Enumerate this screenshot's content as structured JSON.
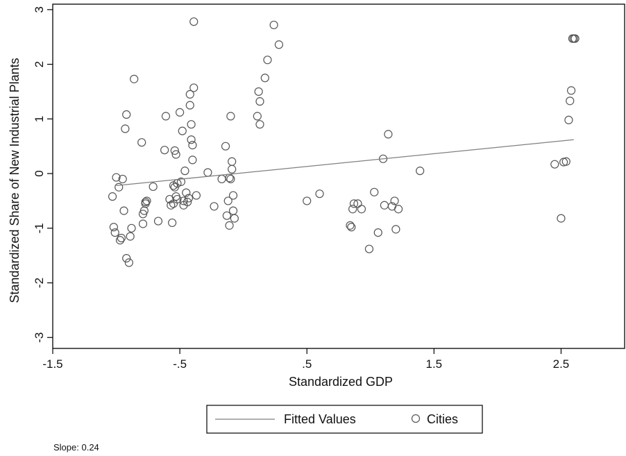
{
  "chart_data": {
    "type": "scatter",
    "xlabel": "Standardized GDP",
    "ylabel": "Standardized Share of New Industrial Plants",
    "xlim": [
      -1.5,
      3.0
    ],
    "ylim": [
      -3.2,
      3.1
    ],
    "xticks": [
      -1.5,
      -0.5,
      0.5,
      1.5,
      2.5
    ],
    "xtick_labels": [
      "-1.5",
      "-.5",
      ".5",
      "1.5",
      "2.5"
    ],
    "yticks": [
      -3,
      -2,
      -1,
      0,
      1,
      2,
      3
    ],
    "ytick_labels": [
      "-3",
      "-2",
      "-1",
      "0",
      "1",
      "2",
      "3"
    ],
    "grid": false,
    "legend_position": "bottom",
    "colors": {
      "line": "#7f7f7f",
      "marker": "#555555",
      "axis": "#000000"
    },
    "series": [
      {
        "name": "Fitted Values",
        "kind": "line",
        "x": [
          -1.0,
          2.6
        ],
        "y": [
          -0.22,
          0.62
        ]
      },
      {
        "name": "Cities",
        "kind": "scatter",
        "x": [
          -1.03,
          -1.02,
          -1.01,
          -1.0,
          -0.98,
          -0.97,
          -0.96,
          -0.95,
          -0.94,
          -0.93,
          -0.92,
          -0.92,
          -0.9,
          -0.89,
          -0.88,
          -0.86,
          -0.8,
          -0.79,
          -0.79,
          -0.78,
          -0.77,
          -0.77,
          -0.76,
          -0.71,
          -0.67,
          -0.62,
          -0.61,
          -0.58,
          -0.57,
          -0.56,
          -0.55,
          -0.55,
          -0.54,
          -0.54,
          -0.53,
          -0.53,
          -0.52,
          -0.52,
          -0.5,
          -0.49,
          -0.48,
          -0.47,
          -0.47,
          -0.46,
          -0.45,
          -0.44,
          -0.43,
          -0.42,
          -0.42,
          -0.41,
          -0.41,
          -0.4,
          -0.4,
          -0.39,
          -0.39,
          -0.37,
          -0.28,
          -0.23,
          -0.17,
          -0.14,
          -0.13,
          -0.12,
          -0.11,
          -0.11,
          -0.1,
          -0.1,
          -0.09,
          -0.09,
          -0.08,
          -0.08,
          -0.07,
          0.11,
          0.12,
          0.13,
          0.13,
          0.17,
          0.19,
          0.24,
          0.28,
          0.5,
          0.6,
          0.84,
          0.85,
          0.86,
          0.87,
          0.9,
          0.93,
          0.99,
          1.03,
          1.06,
          1.1,
          1.11,
          1.14,
          1.17,
          1.19,
          1.2,
          1.22,
          1.39,
          2.45,
          2.5,
          2.52,
          2.54,
          2.56,
          2.57,
          2.58,
          2.59,
          2.6,
          2.61
        ],
        "y": [
          -0.42,
          -0.98,
          -1.08,
          -0.07,
          -0.25,
          -1.22,
          -1.18,
          -0.1,
          -0.68,
          0.82,
          1.08,
          -1.55,
          -1.63,
          -1.15,
          -1.0,
          1.73,
          0.57,
          -0.92,
          -0.74,
          -0.68,
          -0.55,
          -0.52,
          -0.5,
          -0.24,
          -0.87,
          0.43,
          1.05,
          -0.47,
          -0.58,
          -0.9,
          -0.55,
          -0.22,
          -0.25,
          0.42,
          0.35,
          -0.42,
          -0.47,
          -0.18,
          1.12,
          -0.15,
          0.78,
          -0.58,
          -0.5,
          0.05,
          -0.35,
          -0.52,
          -0.45,
          1.45,
          1.25,
          0.9,
          0.62,
          0.52,
          0.25,
          1.57,
          2.78,
          -0.4,
          0.02,
          -0.6,
          -0.1,
          0.5,
          -0.77,
          -0.5,
          -0.95,
          -0.08,
          -0.1,
          1.05,
          0.22,
          0.08,
          -0.4,
          -0.68,
          -0.82,
          1.05,
          1.5,
          0.9,
          1.32,
          1.75,
          2.08,
          2.72,
          2.36,
          -0.5,
          -0.37,
          -0.95,
          -0.98,
          -0.65,
          -0.55,
          -0.55,
          -0.65,
          -1.38,
          -0.34,
          -1.08,
          0.27,
          -0.58,
          0.72,
          -0.6,
          -0.5,
          -1.02,
          -0.65,
          0.05,
          0.17,
          -0.82,
          0.21,
          0.22,
          0.98,
          1.33,
          1.52,
          2.47,
          2.47,
          2.47
        ]
      }
    ],
    "annotation": "Slope: 0.24"
  }
}
